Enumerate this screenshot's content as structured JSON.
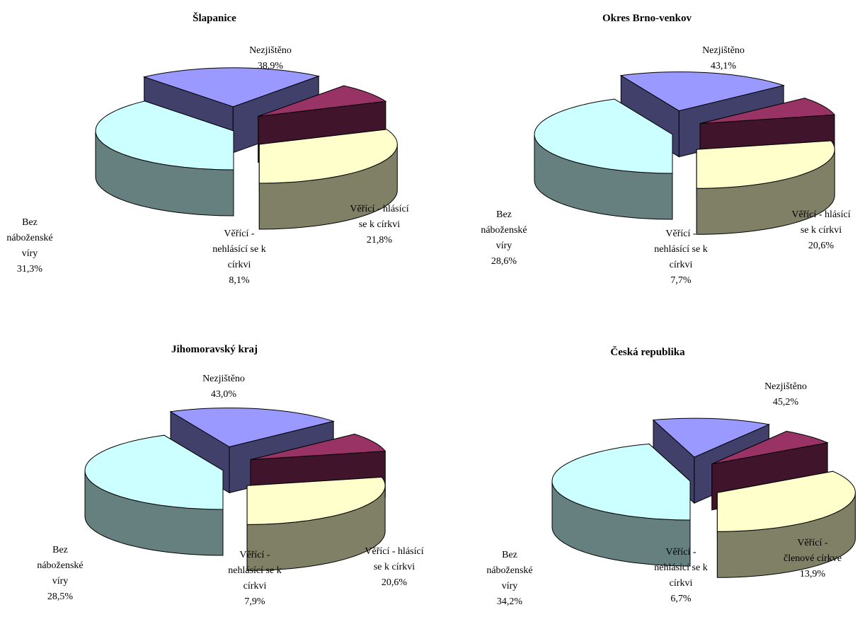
{
  "colors": {
    "Nezjištěno": "#ccffff",
    "Bez náboženské víry": "#ffffcc",
    "Věřící - nehlásící se k církvi": "#993366",
    "Věřící - hlásící se k církvi": "#9999ff"
  },
  "chart_data": [
    {
      "type": "pie",
      "style": "3d-exploded",
      "title": "Šlapanice",
      "slices": [
        {
          "name": "Nezjištěno",
          "value": 38.9,
          "value_label": "38,9%",
          "label_lines": [
            "Nezjištěno"
          ]
        },
        {
          "name": "Věřící - hlásící se k církvi",
          "value": 21.8,
          "value_label": "21,8%",
          "label_lines": [
            "Věřící - hlásící",
            "se k církvi"
          ]
        },
        {
          "name": "Věřící - nehlásící se k církvi",
          "value": 8.1,
          "value_label": "8,1%",
          "label_lines": [
            "Věřící -",
            "nehlásící se k",
            "církvi"
          ]
        },
        {
          "name": "Bez náboženské víry",
          "value": 31.3,
          "value_label": "31,3%",
          "label_lines": [
            "Bez",
            "náboženské",
            "víry"
          ]
        }
      ]
    },
    {
      "type": "pie",
      "style": "3d-exploded",
      "title": "Okres Brno-venkov",
      "slices": [
        {
          "name": "Nezjištěno",
          "value": 43.1,
          "value_label": "43,1%",
          "label_lines": [
            "Nezjištěno"
          ]
        },
        {
          "name": "Věřící - hlásící se k církvi",
          "value": 20.6,
          "value_label": "20,6%",
          "label_lines": [
            "Věřící - hlásící",
            "se k církvi"
          ]
        },
        {
          "name": "Věřící - nehlásící se k církvi",
          "value": 7.7,
          "value_label": "7,7%",
          "label_lines": [
            "Věřící -",
            "nehlásící se k",
            "církvi"
          ]
        },
        {
          "name": "Bez náboženské víry",
          "value": 28.6,
          "value_label": "28,6%",
          "label_lines": [
            "Bez",
            "náboženské",
            "víry"
          ]
        }
      ]
    },
    {
      "type": "pie",
      "style": "3d-exploded",
      "title": "Jihomoravský kraj",
      "slices": [
        {
          "name": "Nezjištěno",
          "value": 43.0,
          "value_label": "43,0%",
          "label_lines": [
            "Nezjištěno"
          ]
        },
        {
          "name": "Věřící - hlásící se k církvi",
          "value": 20.6,
          "value_label": "20,6%",
          "label_lines": [
            "Věřící - hlásící",
            "se k církvi"
          ]
        },
        {
          "name": "Věřící - nehlásící se k církvi",
          "value": 7.9,
          "value_label": "7,9%",
          "label_lines": [
            "Věřící -",
            "nehlásící se k",
            "církvi"
          ]
        },
        {
          "name": "Bez náboženské víry",
          "value": 28.5,
          "value_label": "28,5%",
          "label_lines": [
            "Bez",
            "náboženské",
            "víry"
          ]
        }
      ]
    },
    {
      "type": "pie",
      "style": "3d-exploded",
      "title": "Česká republika",
      "slices": [
        {
          "name": "Nezjištěno",
          "value": 45.2,
          "value_label": "45,2%",
          "label_lines": [
            "Nezjištěno"
          ]
        },
        {
          "name": "Věřící - hlásící se k církvi",
          "value": 13.9,
          "value_label": "13,9%",
          "label_lines": [
            "Věřící -",
            "členové církve"
          ]
        },
        {
          "name": "Věřící - nehlásící se k církvi",
          "value": 6.7,
          "value_label": "6,7%",
          "label_lines": [
            "Věřící -",
            "nehlásící se k",
            "církvi"
          ]
        },
        {
          "name": "Bez náboženské víry",
          "value": 34.2,
          "value_label": "34,2%",
          "label_lines": [
            "Bez",
            "náboženské",
            "víry"
          ]
        }
      ]
    }
  ]
}
